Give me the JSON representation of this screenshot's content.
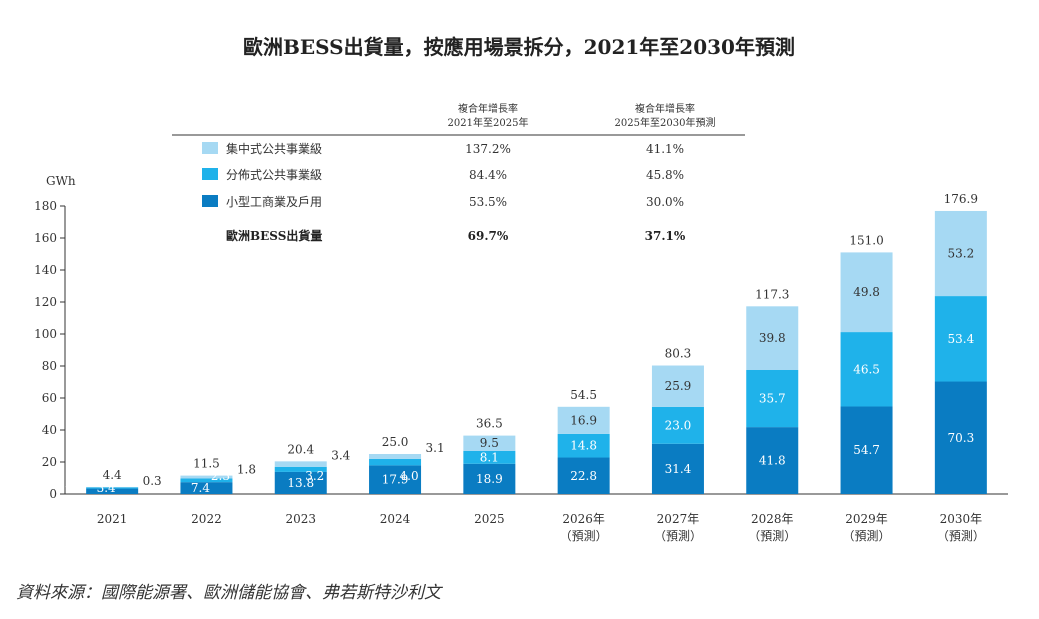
{
  "chart_data": {
    "type": "bar",
    "stacked": true,
    "title": "歐洲BESS出貨量，按應用場景拆分，2021年至2030年預測",
    "ylabel": "GWh",
    "ylim": [
      0,
      180
    ],
    "yticks": [
      "0",
      "20",
      "40",
      "60",
      "80",
      "100",
      "120",
      "140",
      "160",
      "180"
    ],
    "categories": [
      {
        "line1": "2021",
        "line2": ""
      },
      {
        "line1": "2022",
        "line2": ""
      },
      {
        "line1": "2023",
        "line2": ""
      },
      {
        "line1": "2024",
        "line2": ""
      },
      {
        "line1": "2025",
        "line2": ""
      },
      {
        "line1": "2026年",
        "line2": "（預測）"
      },
      {
        "line1": "2027年",
        "line2": "（預測）"
      },
      {
        "line1": "2028年",
        "line2": "（預測）"
      },
      {
        "line1": "2029年",
        "line2": "（預測）"
      },
      {
        "line1": "2030年",
        "line2": "（預測）"
      }
    ],
    "series": [
      {
        "name": "小型工商業及戶用",
        "color": "#0a7cc2",
        "values": [
          3.4,
          7.4,
          13.8,
          17.9,
          18.9,
          22.8,
          31.4,
          41.8,
          54.7,
          70.3
        ]
      },
      {
        "name": "分佈式公共事業級",
        "color": "#1fb2ea",
        "values": [
          0.7,
          2.3,
          3.2,
          4.0,
          8.1,
          14.8,
          23.0,
          35.7,
          46.5,
          53.4
        ]
      },
      {
        "name": "集中式公共事業級",
        "color": "#a6d9f3",
        "values": [
          0.3,
          1.8,
          3.4,
          3.1,
          9.5,
          16.9,
          25.9,
          39.8,
          49.8,
          53.2
        ]
      }
    ],
    "totals": [
      4.4,
      11.5,
      20.4,
      25.0,
      36.5,
      54.5,
      80.3,
      117.3,
      151.0,
      176.9
    ],
    "labels": {
      "bottom": [
        "3.4",
        "7.4",
        "13.8",
        "17.9",
        "18.9",
        "22.8",
        "31.4",
        "41.8",
        "54.7",
        "70.3"
      ],
      "middle": [
        "0.7",
        "2.3",
        "3.2",
        "4.0",
        "8.1",
        "14.8",
        "23.0",
        "35.7",
        "46.5",
        "53.4"
      ],
      "top": [
        "0.3",
        "1.8",
        "3.4",
        "3.1",
        "9.5",
        "16.9",
        "25.9",
        "39.8",
        "49.8",
        "53.2"
      ],
      "totals": [
        "4.4",
        "11.5",
        "20.4",
        "25.0",
        "36.5",
        "54.5",
        "80.3",
        "117.3",
        "151.0",
        "176.9"
      ]
    }
  },
  "cagr_table": {
    "col1_header": [
      "複合年增長率",
      "2021年至2025年"
    ],
    "col2_header": [
      "複合年增長率",
      "2025年至2030年預測"
    ],
    "rows": [
      {
        "name": "集中式公共事業級",
        "color": "#a6d9f3",
        "c1": "137.2%",
        "c2": "41.1%"
      },
      {
        "name": "分佈式公共事業級",
        "color": "#1fb2ea",
        "c1": "84.4%",
        "c2": "45.8%"
      },
      {
        "name": "小型工商業及戶用",
        "color": "#0a7cc2",
        "c1": "53.5%",
        "c2": "30.0%"
      }
    ],
    "total_row": {
      "name": "歐洲BESS出貨量",
      "c1": "69.7%",
      "c2": "37.1%"
    }
  },
  "source": "資料來源：國際能源署、歐洲儲能協會、弗若斯特沙利文"
}
